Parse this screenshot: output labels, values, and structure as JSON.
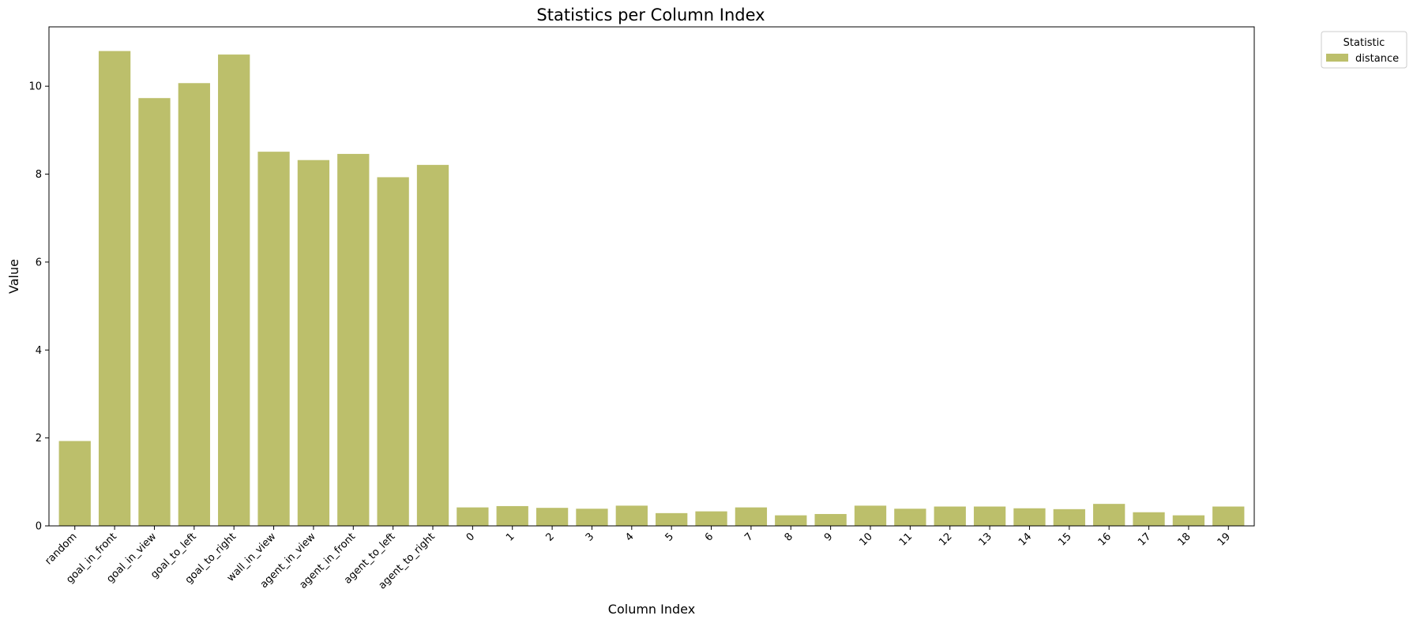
{
  "chart_data": {
    "type": "bar",
    "title": "Statistics per Column Index",
    "xlabel": "Column Index",
    "ylabel": "Value",
    "ylim": [
      0,
      11.35
    ],
    "yticks": [
      0,
      2,
      4,
      6,
      8,
      10
    ],
    "categories": [
      "random",
      "goal_in_front",
      "goal_in_view",
      "goal_to_left",
      "goal_to_right",
      "wall_in_view",
      "agent_in_view",
      "agent_in_front",
      "agent_to_left",
      "agent_to_right",
      "0",
      "1",
      "2",
      "3",
      "4",
      "5",
      "6",
      "7",
      "8",
      "9",
      "10",
      "11",
      "12",
      "13",
      "14",
      "15",
      "16",
      "17",
      "18",
      "19"
    ],
    "series": [
      {
        "name": "distance",
        "color": "#bcbf6b",
        "values": [
          1.93,
          10.8,
          9.73,
          10.07,
          10.72,
          8.51,
          8.32,
          8.46,
          7.93,
          8.21,
          0.42,
          0.45,
          0.41,
          0.39,
          0.46,
          0.29,
          0.33,
          0.42,
          0.24,
          0.27,
          0.46,
          0.39,
          0.44,
          0.44,
          0.4,
          0.38,
          0.5,
          0.31,
          0.24,
          0.44
        ]
      }
    ],
    "legend": {
      "title": "Statistic",
      "placement": "outside-top-right"
    },
    "grid": false
  }
}
